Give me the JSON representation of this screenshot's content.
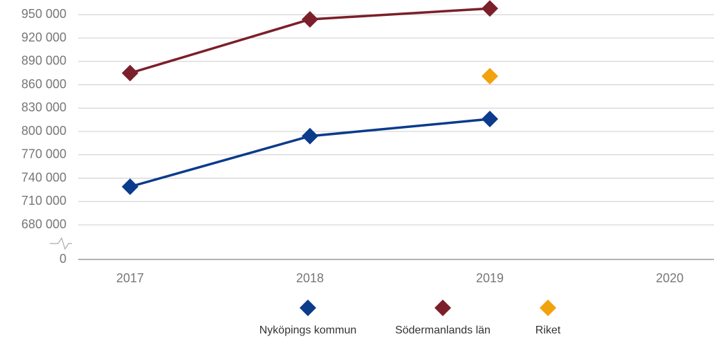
{
  "chart_data": {
    "type": "line",
    "categories": [
      "2017",
      "2018",
      "2019",
      "2020"
    ],
    "series": [
      {
        "name": "Nyköpings kommun",
        "color": "#0b3b8c",
        "values": [
          729000,
          794000,
          816000,
          null
        ]
      },
      {
        "name": "Södermanlands län",
        "color": "#7b1f2a",
        "values": [
          875000,
          944000,
          958000,
          null
        ]
      },
      {
        "name": "Riket",
        "color": "#f2a20c",
        "values": [
          null,
          null,
          871000,
          null
        ]
      }
    ],
    "ylim": [
      0,
      960000
    ],
    "yticks": [
      0,
      {
        "value": 680000,
        "label": "680 000"
      },
      {
        "value": 710000,
        "label": "710 000"
      },
      {
        "value": 740000,
        "label": "740 000"
      },
      {
        "value": 770000,
        "label": "770 000"
      },
      {
        "value": 800000,
        "label": "800 000"
      },
      {
        "value": 830000,
        "label": "830 000"
      },
      {
        "value": 860000,
        "label": "860 000"
      },
      {
        "value": 890000,
        "label": "890 000"
      },
      {
        "value": 920000,
        "label": "920 000"
      },
      {
        "value": 950000,
        "label": "950 000"
      }
    ],
    "axis_break": true,
    "grid": true,
    "legend": "bottom"
  }
}
